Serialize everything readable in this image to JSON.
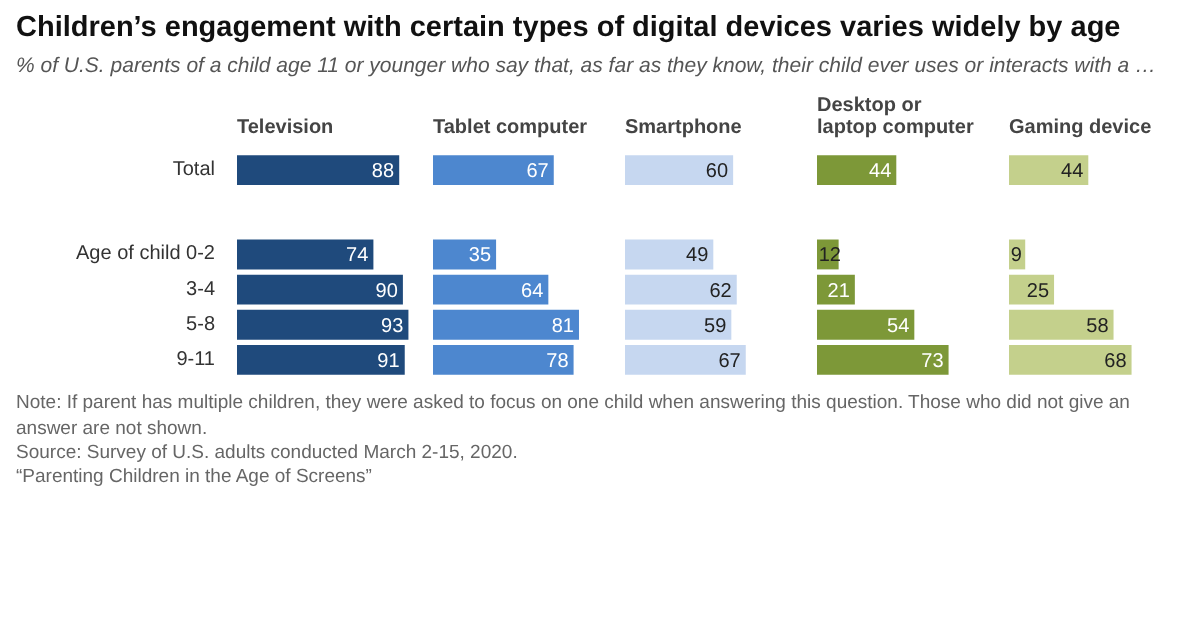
{
  "chart_data": [
    {
      "type": "other",
      "title": "Children’s engagement with certain types of digital devices varies widely by age",
      "subtitle": "% of U.S. parents of a child age 11 or younger who say that, as far as they know, their child ever uses or interacts with a …",
      "annotations": [
        "Note: If parent has multiple children, they were asked to focus on one child when answering this question. Those who did not give an answer are not shown.",
        "Source: Survey of U.S. adults conducted March 2-15, 2020.",
        "“Parenting Children in the Age of Screens”"
      ]
    },
    {
      "type": "bar",
      "orientation": "horizontal",
      "title": "Television",
      "categories": [
        "Total",
        "Age of child 0-2",
        "3-4",
        "5-8",
        "9-11"
      ],
      "values": [
        88,
        74,
        90,
        93,
        91
      ],
      "color": "#1f4a7c",
      "data_labels": true,
      "tick_labels": "y"
    },
    {
      "type": "bar",
      "orientation": "horizontal",
      "title": "Tablet computer",
      "values": [
        67,
        35,
        64,
        81,
        78
      ],
      "color": "#4d87cf",
      "data_labels": true,
      "tick_labels": false
    },
    {
      "type": "bar",
      "orientation": "horizontal",
      "title": "Smartphone",
      "values": [
        60,
        49,
        62,
        59,
        67
      ],
      "color": "#c6d7f0",
      "data_labels": true,
      "tick_labels": false
    },
    {
      "type": "bar",
      "orientation": "horizontal",
      "title": "Desktop or laptop computer",
      "values": [
        44,
        12,
        21,
        54,
        73
      ],
      "color": "#7d9838",
      "data_labels": true,
      "tick_labels": false
    },
    {
      "type": "bar",
      "orientation": "horizontal",
      "title": "Gaming device",
      "values": [
        44,
        9,
        25,
        58,
        68
      ],
      "color": "#c4d08c",
      "data_labels": true,
      "tick_labels": false
    }
  ]
}
